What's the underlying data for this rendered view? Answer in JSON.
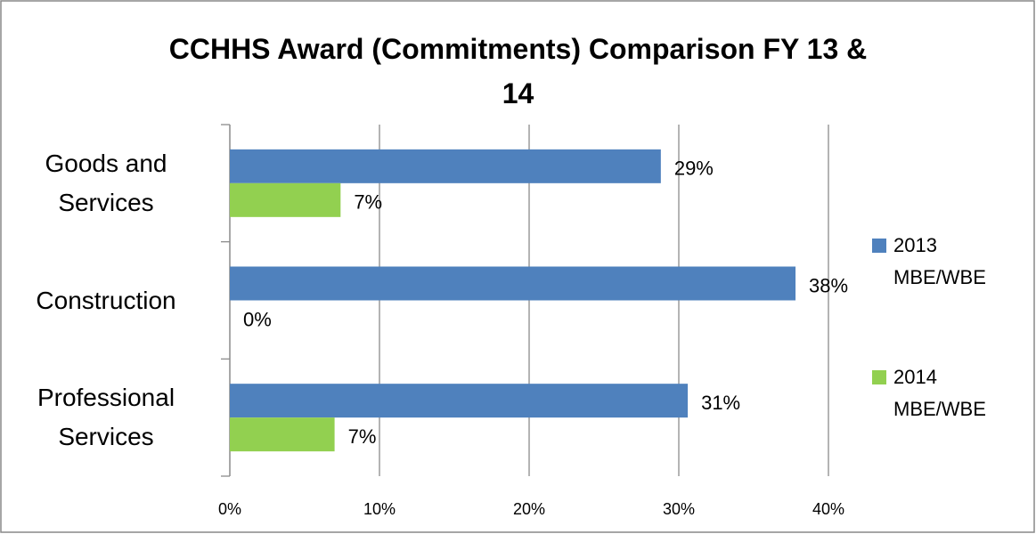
{
  "chart_data": {
    "type": "barh",
    "title": "CCHHS Award (Commitments) Comparison FY 13 & 14",
    "categories": [
      "Goods and Services",
      "Construction",
      "Professional Services"
    ],
    "series": [
      {
        "name": "2013 MBE/WBE",
        "color": "#4f81bd",
        "values": [
          28.8,
          37.8,
          30.6
        ],
        "value_labels": [
          "29%",
          "38%",
          "31%"
        ]
      },
      {
        "name": "2014 MBE/WBE",
        "color": "#92d050",
        "values": [
          7.4,
          0,
          7.0
        ],
        "value_labels": [
          "7%",
          "0%",
          "7%"
        ]
      }
    ],
    "xlim": [
      0,
      40
    ],
    "xticks": [
      {
        "value": 0,
        "label": "0%"
      },
      {
        "value": 10,
        "label": "10%"
      },
      {
        "value": 20,
        "label": "20%"
      },
      {
        "value": 30,
        "label": "30%"
      },
      {
        "value": 40,
        "label": "40%"
      }
    ],
    "grid": true,
    "legend": "right"
  }
}
